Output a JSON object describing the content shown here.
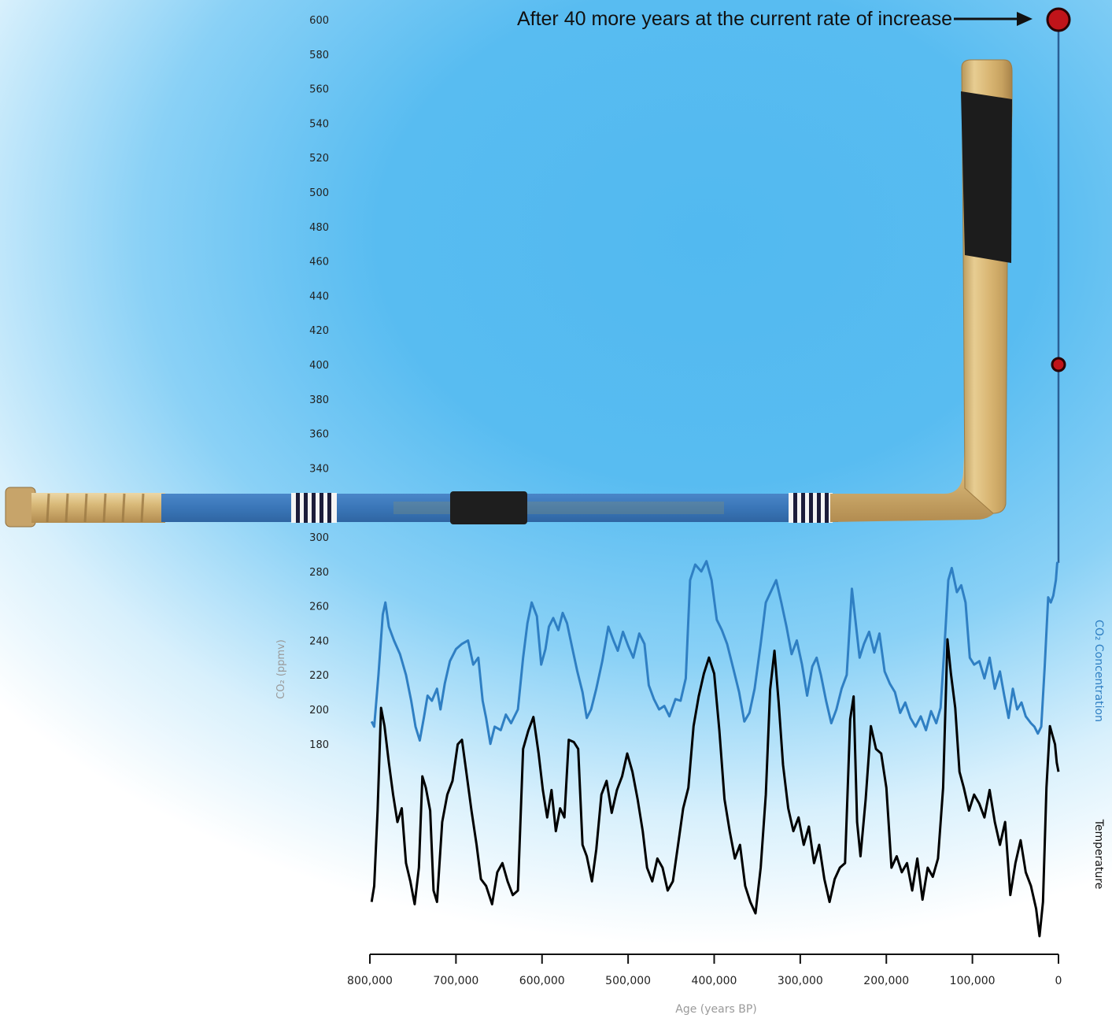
{
  "chart_data": {
    "type": "line",
    "annotation": "After 40 more years at the current rate of increase",
    "xlabel": "Age (years BP)",
    "x_ticks": [
      "800,000",
      "700,000",
      "600,000",
      "500,000",
      "400,000",
      "300,000",
      "200,000",
      "100,000",
      "0"
    ],
    "x_range": [
      800000,
      0
    ],
    "y_axis": {
      "label": "CO₂ (ppmv)",
      "range": [
        180,
        600
      ],
      "ticks_upper": [
        600,
        580,
        560,
        540,
        520,
        500,
        480,
        460,
        440,
        420,
        400,
        380,
        360,
        340
      ],
      "ticks_lower": [
        300,
        280,
        260,
        240,
        220,
        200,
        180
      ]
    },
    "series": [
      {
        "name": "CO₂ Concentration",
        "color": "#2f7fc3",
        "points": [
          [
            798000,
            193
          ],
          [
            795000,
            190
          ],
          [
            790000,
            220
          ],
          [
            785000,
            255
          ],
          [
            782000,
            262
          ],
          [
            778000,
            248
          ],
          [
            772000,
            240
          ],
          [
            765000,
            232
          ],
          [
            758000,
            220
          ],
          [
            752000,
            205
          ],
          [
            747000,
            190
          ],
          [
            742000,
            182
          ],
          [
            737000,
            196
          ],
          [
            733000,
            208
          ],
          [
            728000,
            205
          ],
          [
            722000,
            212
          ],
          [
            718000,
            200
          ],
          [
            713000,
            215
          ],
          [
            707000,
            228
          ],
          [
            700000,
            235
          ],
          [
            693000,
            238
          ],
          [
            686000,
            240
          ],
          [
            680000,
            226
          ],
          [
            674000,
            230
          ],
          [
            669000,
            205
          ],
          [
            665000,
            195
          ],
          [
            660000,
            180
          ],
          [
            655000,
            190
          ],
          [
            648000,
            188
          ],
          [
            642000,
            197
          ],
          [
            636000,
            192
          ],
          [
            628000,
            200
          ],
          [
            622000,
            230
          ],
          [
            617000,
            250
          ],
          [
            612000,
            262
          ],
          [
            606000,
            254
          ],
          [
            601000,
            226
          ],
          [
            596000,
            235
          ],
          [
            592000,
            248
          ],
          [
            587000,
            253
          ],
          [
            581000,
            246
          ],
          [
            576000,
            256
          ],
          [
            571000,
            250
          ],
          [
            565000,
            236
          ],
          [
            559000,
            222
          ],
          [
            553000,
            210
          ],
          [
            548000,
            195
          ],
          [
            543000,
            200
          ],
          [
            537000,
            212
          ],
          [
            530000,
            228
          ],
          [
            523000,
            248
          ],
          [
            517000,
            240
          ],
          [
            512000,
            234
          ],
          [
            506000,
            245
          ],
          [
            500000,
            237
          ],
          [
            494000,
            230
          ],
          [
            487000,
            244
          ],
          [
            481000,
            238
          ],
          [
            476000,
            214
          ],
          [
            470000,
            206
          ],
          [
            464000,
            200
          ],
          [
            458000,
            202
          ],
          [
            452000,
            196
          ],
          [
            445000,
            206
          ],
          [
            439000,
            205
          ],
          [
            433000,
            218
          ],
          [
            428000,
            275
          ],
          [
            422000,
            284
          ],
          [
            415000,
            280
          ],
          [
            409000,
            286
          ],
          [
            403000,
            275
          ],
          [
            397000,
            252
          ],
          [
            391000,
            246
          ],
          [
            385000,
            238
          ],
          [
            378000,
            224
          ],
          [
            371000,
            210
          ],
          [
            365000,
            193
          ],
          [
            359000,
            198
          ],
          [
            353000,
            212
          ],
          [
            346000,
            238
          ],
          [
            340000,
            262
          ],
          [
            334000,
            292
          ],
          [
            328000,
            275
          ],
          [
            322000,
            262
          ],
          [
            316000,
            248
          ],
          [
            310000,
            232
          ],
          [
            304000,
            240
          ],
          [
            298000,
            226
          ],
          [
            292000,
            208
          ],
          [
            286000,
            225
          ],
          [
            281000,
            230
          ],
          [
            276000,
            220
          ],
          [
            270000,
            205
          ],
          [
            264000,
            192
          ],
          [
            258000,
            200
          ],
          [
            252000,
            212
          ],
          [
            246000,
            220
          ],
          [
            240000,
            270
          ],
          [
            236000,
            252
          ],
          [
            231000,
            230
          ],
          [
            226000,
            238
          ],
          [
            220000,
            245
          ],
          [
            214000,
            233
          ],
          [
            208000,
            244
          ],
          [
            202000,
            222
          ],
          [
            196000,
            215
          ],
          [
            190000,
            210
          ],
          [
            184000,
            198
          ],
          [
            178000,
            204
          ],
          [
            172000,
            195
          ],
          [
            166000,
            190
          ],
          [
            160000,
            196
          ],
          [
            154000,
            188
          ],
          [
            148000,
            199
          ],
          [
            142000,
            192
          ],
          [
            137000,
            201
          ],
          [
            132000,
            240
          ],
          [
            128000,
            275
          ],
          [
            124000,
            282
          ],
          [
            118000,
            268
          ],
          [
            113000,
            272
          ],
          [
            108000,
            262
          ],
          [
            103000,
            230
          ],
          [
            98000,
            226
          ],
          [
            92000,
            228
          ],
          [
            86000,
            218
          ],
          [
            80000,
            230
          ],
          [
            74000,
            212
          ],
          [
            68000,
            222
          ],
          [
            63000,
            208
          ],
          [
            58000,
            195
          ],
          [
            53000,
            212
          ],
          [
            48000,
            200
          ],
          [
            43000,
            204
          ],
          [
            38000,
            196
          ],
          [
            32000,
            192
          ],
          [
            28000,
            190
          ],
          [
            24000,
            186
          ],
          [
            20000,
            190
          ],
          [
            16000,
            225
          ],
          [
            12000,
            265
          ],
          [
            9000,
            262
          ],
          [
            6000,
            266
          ],
          [
            3000,
            275
          ],
          [
            1500,
            285
          ],
          [
            0,
            285
          ],
          [
            0,
            400
          ],
          [
            0,
            600
          ]
        ]
      },
      {
        "name": "Temperature",
        "color": "#000000",
        "points": [
          [
            798000,
            0.05
          ],
          [
            795000,
            0.12
          ],
          [
            791000,
            0.45
          ],
          [
            787000,
            0.9
          ],
          [
            783000,
            0.82
          ],
          [
            778000,
            0.66
          ],
          [
            773000,
            0.52
          ],
          [
            768000,
            0.4
          ],
          [
            763000,
            0.46
          ],
          [
            758000,
            0.22
          ],
          [
            753000,
            0.14
          ],
          [
            748000,
            0.04
          ],
          [
            743000,
            0.2
          ],
          [
            739000,
            0.6
          ],
          [
            735000,
            0.55
          ],
          [
            730000,
            0.45
          ],
          [
            726000,
            0.1
          ],
          [
            722000,
            0.05
          ],
          [
            716000,
            0.4
          ],
          [
            710000,
            0.52
          ],
          [
            704000,
            0.58
          ],
          [
            698000,
            0.74
          ],
          [
            693000,
            0.76
          ],
          [
            688000,
            0.62
          ],
          [
            682000,
            0.45
          ],
          [
            676000,
            0.3
          ],
          [
            671000,
            0.15
          ],
          [
            665000,
            0.12
          ],
          [
            658000,
            0.04
          ],
          [
            652000,
            0.18
          ],
          [
            646000,
            0.22
          ],
          [
            640000,
            0.14
          ],
          [
            634000,
            0.08
          ],
          [
            628000,
            0.1
          ],
          [
            622000,
            0.72
          ],
          [
            616000,
            0.8
          ],
          [
            610000,
            0.86
          ],
          [
            604000,
            0.7
          ],
          [
            599000,
            0.54
          ],
          [
            594000,
            0.42
          ],
          [
            589000,
            0.54
          ],
          [
            584000,
            0.36
          ],
          [
            579000,
            0.46
          ],
          [
            574000,
            0.42
          ],
          [
            569000,
            0.76
          ],
          [
            563000,
            0.75
          ],
          [
            558000,
            0.72
          ],
          [
            553000,
            0.3
          ],
          [
            548000,
            0.25
          ],
          [
            542000,
            0.14
          ],
          [
            537000,
            0.28
          ],
          [
            531000,
            0.52
          ],
          [
            525000,
            0.58
          ],
          [
            519000,
            0.44
          ],
          [
            513000,
            0.54
          ],
          [
            507000,
            0.6
          ],
          [
            501000,
            0.7
          ],
          [
            495000,
            0.62
          ],
          [
            489000,
            0.5
          ],
          [
            483000,
            0.36
          ],
          [
            478000,
            0.2
          ],
          [
            472000,
            0.14
          ],
          [
            466000,
            0.24
          ],
          [
            460000,
            0.2
          ],
          [
            454000,
            0.1
          ],
          [
            448000,
            0.14
          ],
          [
            442000,
            0.3
          ],
          [
            436000,
            0.46
          ],
          [
            430000,
            0.55
          ],
          [
            424000,
            0.82
          ],
          [
            418000,
            0.95
          ],
          [
            412000,
            1.05
          ],
          [
            406000,
            1.12
          ],
          [
            400000,
            1.05
          ],
          [
            394000,
            0.8
          ],
          [
            388000,
            0.5
          ],
          [
            382000,
            0.36
          ],
          [
            376000,
            0.24
          ],
          [
            370000,
            0.3
          ],
          [
            364000,
            0.12
          ],
          [
            358000,
            0.05
          ],
          [
            352000,
            0.0
          ],
          [
            346000,
            0.2
          ],
          [
            340000,
            0.52
          ],
          [
            335000,
            0.98
          ],
          [
            330000,
            1.15
          ],
          [
            325000,
            0.92
          ],
          [
            320000,
            0.65
          ],
          [
            314000,
            0.46
          ],
          [
            308000,
            0.36
          ],
          [
            302000,
            0.42
          ],
          [
            296000,
            0.3
          ],
          [
            290000,
            0.38
          ],
          [
            284000,
            0.22
          ],
          [
            278000,
            0.3
          ],
          [
            272000,
            0.15
          ],
          [
            266000,
            0.05
          ],
          [
            260000,
            0.15
          ],
          [
            254000,
            0.2
          ],
          [
            248000,
            0.22
          ],
          [
            242000,
            0.85
          ],
          [
            238000,
            0.95
          ],
          [
            234000,
            0.4
          ],
          [
            230000,
            0.25
          ],
          [
            224000,
            0.5
          ],
          [
            218000,
            0.82
          ],
          [
            212000,
            0.72
          ],
          [
            206000,
            0.7
          ],
          [
            200000,
            0.55
          ],
          [
            194000,
            0.2
          ],
          [
            188000,
            0.25
          ],
          [
            182000,
            0.18
          ],
          [
            176000,
            0.22
          ],
          [
            170000,
            0.1
          ],
          [
            164000,
            0.24
          ],
          [
            158000,
            0.06
          ],
          [
            152000,
            0.2
          ],
          [
            146000,
            0.16
          ],
          [
            140000,
            0.24
          ],
          [
            134000,
            0.55
          ],
          [
            129000,
            1.2
          ],
          [
            125000,
            1.05
          ],
          [
            120000,
            0.9
          ],
          [
            115000,
            0.62
          ],
          [
            110000,
            0.55
          ],
          [
            104000,
            0.45
          ],
          [
            98000,
            0.52
          ],
          [
            92000,
            0.48
          ],
          [
            86000,
            0.42
          ],
          [
            80000,
            0.54
          ],
          [
            74000,
            0.4
          ],
          [
            68000,
            0.3
          ],
          [
            62000,
            0.4
          ],
          [
            56000,
            0.08
          ],
          [
            50000,
            0.22
          ],
          [
            44000,
            0.32
          ],
          [
            38000,
            0.18
          ],
          [
            32000,
            0.12
          ],
          [
            26000,
            0.02
          ],
          [
            22000,
            -0.1
          ],
          [
            18000,
            0.05
          ],
          [
            14000,
            0.55
          ],
          [
            10000,
            0.82
          ],
          [
            7000,
            0.78
          ],
          [
            4000,
            0.74
          ],
          [
            2000,
            0.66
          ],
          [
            0,
            0.62
          ]
        ]
      }
    ],
    "highlight_points": [
      {
        "x": 0,
        "y": 400
      },
      {
        "x": 0,
        "y": 600
      }
    ]
  }
}
